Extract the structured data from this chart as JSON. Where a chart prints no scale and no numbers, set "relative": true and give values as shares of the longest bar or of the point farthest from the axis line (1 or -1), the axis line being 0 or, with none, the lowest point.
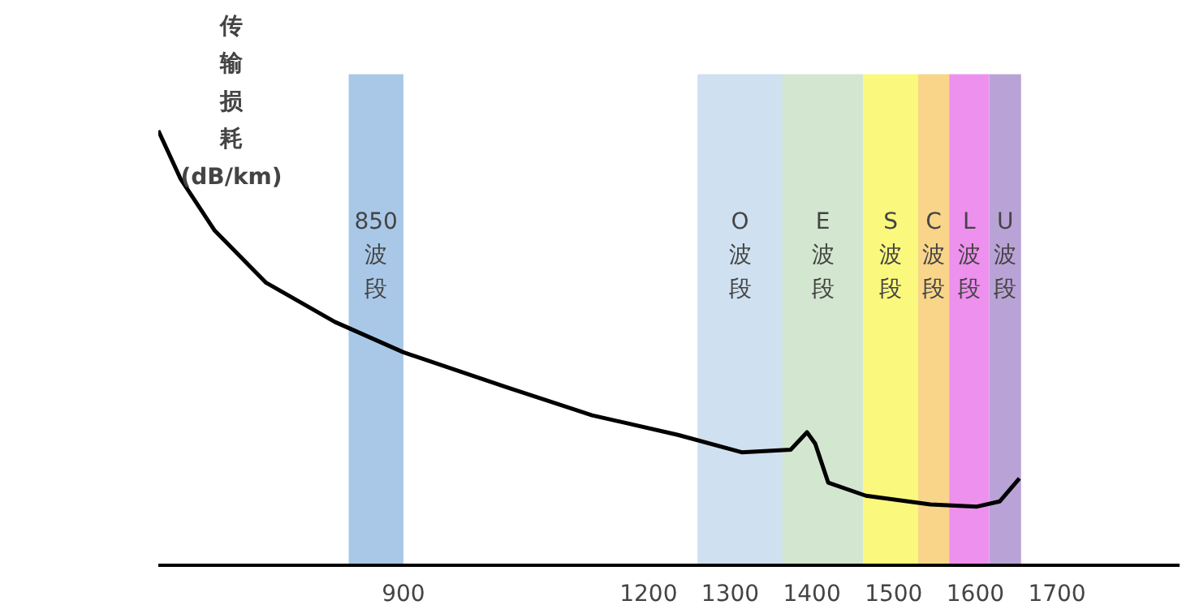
{
  "chart_data": {
    "type": "line",
    "ylabel": "传输损耗(dB/km)",
    "relative": true,
    "grid": false,
    "marker": "none",
    "line_style": "solid",
    "x": [
      600,
      627,
      669,
      732,
      816,
      900,
      1026,
      1131,
      1236,
      1314,
      1374,
      1394,
      1404,
      1420,
      1466,
      1545,
      1602,
      1630,
      1654
    ],
    "series": [
      {
        "color": "#000000",
        "values": [
          1.0,
          0.89,
          0.77,
          0.65,
          0.56,
          0.49,
          0.41,
          0.345,
          0.3,
          0.26,
          0.266,
          0.306,
          0.28,
          0.19,
          0.16,
          0.14,
          0.135,
          0.147,
          0.2
        ]
      }
    ],
    "xlim": [
      600,
      1850
    ],
    "xticks": [
      900,
      1200,
      1300,
      1400,
      1500,
      1600,
      1700
    ],
    "bands": [
      {
        "axis": "x",
        "from": 833,
        "to": 900,
        "label": "850 波段",
        "color": "#a9c8e8"
      },
      {
        "axis": "x",
        "from": 1260,
        "to": 1364,
        "label": "O 波段",
        "color": "#cfe0f0"
      },
      {
        "axis": "x",
        "from": 1364,
        "to": 1463,
        "label": "E 波段",
        "color": "#d3e6cf"
      },
      {
        "axis": "x",
        "from": 1463,
        "to": 1530,
        "label": "S 波段",
        "color": "#fbf87e"
      },
      {
        "axis": "x",
        "from": 1530,
        "to": 1568,
        "label": "C 波段",
        "color": "#f9d58a"
      },
      {
        "axis": "x",
        "from": 1568,
        "to": 1617,
        "label": "L 波段",
        "color": "#ee90ee"
      },
      {
        "axis": "x",
        "from": 1617,
        "to": 1656,
        "label": "U 波段",
        "color": "#b9a3d6"
      }
    ]
  }
}
